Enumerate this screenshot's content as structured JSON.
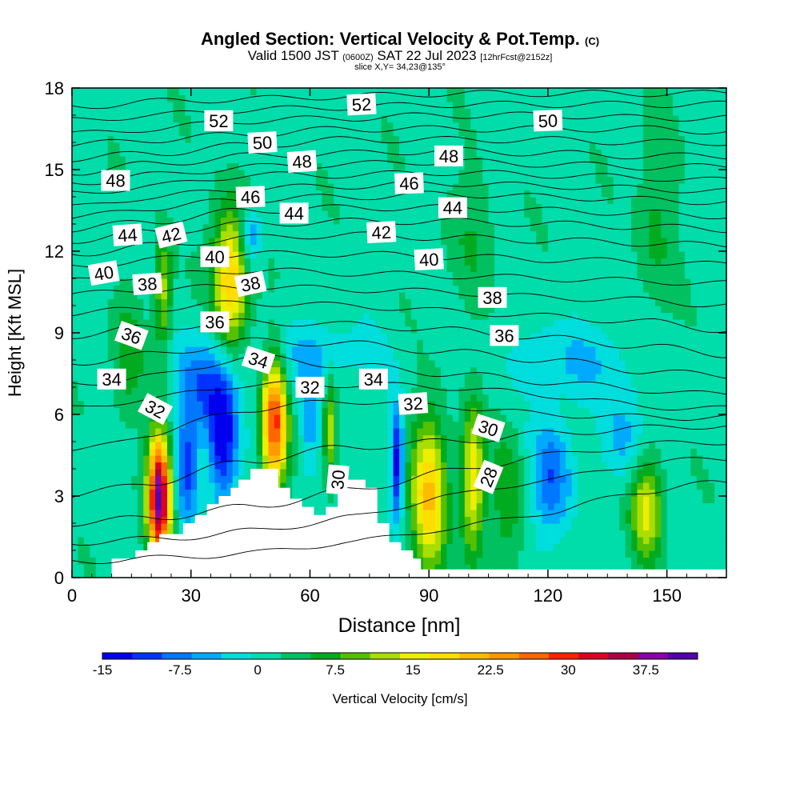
{
  "title": {
    "main": "Angled Section: Vertical Velocity & Pot.Temp.",
    "copyright": "(C)",
    "valid_prefix": "Valid 1500 JST",
    "valid_utc": "(0600Z)",
    "valid_date": "SAT 22 Jul 2023",
    "forecast": "[12hrFcst@2152z]",
    "slice": "slice X,Y= 34,23@135°"
  },
  "chart_data": {
    "type": "heatmap",
    "title": "Angled Section: Vertical Velocity & Pot.Temp.",
    "xlabel": "Distance [nm]",
    "ylabel": "Height [Kft MSL]",
    "xlim": [
      0,
      165
    ],
    "ylim": [
      0,
      18
    ],
    "x_ticks": [
      0,
      30,
      60,
      90,
      120,
      150
    ],
    "y_ticks": [
      0,
      3,
      6,
      9,
      12,
      15,
      18
    ],
    "colorbar": {
      "label": "Vertical Velocity [cm/s]",
      "min": -15,
      "max": 42.5,
      "step": 2.5,
      "tick_labels": [
        "-15",
        "-7.5",
        "0",
        "7.5",
        "15",
        "22.5",
        "30",
        "37.5"
      ],
      "colors": [
        "#0000ee",
        "#0033ff",
        "#0077ff",
        "#00aaff",
        "#00dddd",
        "#00dcaa",
        "#00c060",
        "#00ab20",
        "#55c000",
        "#aadd00",
        "#eeee00",
        "#ffdd00",
        "#ffbb00",
        "#ff9900",
        "#ff6600",
        "#ff2200",
        "#dd0022",
        "#aa0044",
        "#8800aa",
        "#5500aa"
      ]
    },
    "background_value": -1.0,
    "vertical_velocity_features": [
      {
        "x": 22,
        "z": 3.0,
        "sx": 2.0,
        "sz": 1.6,
        "value": 34
      },
      {
        "x": 23,
        "z": 10.5,
        "sx": 1.5,
        "sz": 1.5,
        "value": 10
      },
      {
        "x": 40,
        "z": 11.0,
        "sx": 3.2,
        "sz": 1.8,
        "value": 17
      },
      {
        "x": 14,
        "z": 8.0,
        "sx": 3.0,
        "sz": 1.5,
        "value": 5
      },
      {
        "x": 51,
        "z": 5.7,
        "sx": 2.2,
        "sz": 1.7,
        "value": 24
      },
      {
        "x": 65,
        "z": 5.5,
        "sx": 1.2,
        "sz": 1.2,
        "value": 11
      },
      {
        "x": 90,
        "z": 3.0,
        "sx": 3.2,
        "sz": 2.0,
        "value": 16
      },
      {
        "x": 101,
        "z": 3.5,
        "sx": 2.0,
        "sz": 1.9,
        "value": 14
      },
      {
        "x": 110,
        "z": 3.0,
        "sx": 3.0,
        "sz": 2.0,
        "value": 5
      },
      {
        "x": 145,
        "z": 2.5,
        "sx": 2.8,
        "sz": 1.3,
        "value": 12
      },
      {
        "x": 147,
        "z": 13.0,
        "sx": 3.5,
        "sz": 2.5,
        "value": 4
      },
      {
        "x": 101,
        "z": 12.5,
        "sx": 5.0,
        "sz": 1.8,
        "value": 3
      },
      {
        "x": 33,
        "z": 7.0,
        "sx": 4.5,
        "sz": 1.3,
        "value": -9
      },
      {
        "x": 38,
        "z": 5.0,
        "sx": 2.4,
        "sz": 1.6,
        "value": -14
      },
      {
        "x": 29,
        "z": 4.0,
        "sx": 2.0,
        "sz": 1.4,
        "value": -9
      },
      {
        "x": 45,
        "z": 12.5,
        "sx": 2.0,
        "sz": 0.8,
        "value": -9
      },
      {
        "x": 60,
        "z": 5.8,
        "sx": 1.8,
        "sz": 1.5,
        "value": -5
      },
      {
        "x": 82,
        "z": 4.3,
        "sx": 1.1,
        "sz": 1.4,
        "value": -13
      },
      {
        "x": 121,
        "z": 3.7,
        "sx": 3.5,
        "sz": 1.5,
        "value": -9
      },
      {
        "x": 139,
        "z": 5.2,
        "sx": 3.5,
        "sz": 1.2,
        "value": -5
      },
      {
        "x": 127,
        "z": 8.0,
        "sx": 12.0,
        "sz": 1.0,
        "value": -4
      },
      {
        "x": 60,
        "z": 8.2,
        "sx": 12.0,
        "sz": 0.9,
        "value": -4
      }
    ],
    "terrain": [
      [
        10,
        0.7
      ],
      [
        13,
        0.7
      ],
      [
        16,
        1.0
      ],
      [
        19,
        1.3
      ],
      [
        22,
        1.6
      ],
      [
        25,
        1.6
      ],
      [
        28,
        2.0
      ],
      [
        31,
        2.3
      ],
      [
        34,
        2.7
      ],
      [
        37,
        3.0
      ],
      [
        40,
        3.3
      ],
      [
        42,
        3.6
      ],
      [
        45,
        4.0
      ],
      [
        48,
        4.0
      ],
      [
        52,
        3.3
      ],
      [
        55,
        2.9
      ],
      [
        58,
        2.6
      ],
      [
        61,
        2.3
      ],
      [
        64,
        2.6
      ],
      [
        67,
        3.6
      ],
      [
        71,
        3.6
      ],
      [
        74,
        3.3
      ],
      [
        77,
        2.0
      ],
      [
        80,
        1.3
      ],
      [
        83,
        1.0
      ],
      [
        86,
        0.7
      ],
      [
        88,
        0.3
      ],
      [
        89,
        0.3
      ],
      [
        165,
        0.3
      ]
    ],
    "potential_temperature_contours": [
      {
        "value": 28,
        "z": [
          0.6,
          0.7,
          0.9,
          1.3,
          1.8,
          2.4,
          3.2,
          3.5
        ]
      },
      {
        "value": 29,
        "z": [
          1.3,
          1.4,
          1.7,
          2.2,
          3.0,
          3.6,
          4.2,
          4.4
        ]
      },
      {
        "value": 30,
        "z": [
          2.0,
          2.2,
          2.6,
          3.2,
          3.9,
          4.5,
          4.9,
          5.0
        ]
      },
      {
        "value": 31,
        "z": [
          3.0,
          3.5,
          4.3,
          4.8,
          5.0,
          5.3,
          5.5,
          5.6
        ]
      },
      {
        "value": 32,
        "z": [
          4.6,
          5.3,
          6.2,
          6.5,
          6.3,
          6.0,
          5.9,
          5.9
        ]
      },
      {
        "value": 33,
        "z": [
          6.2,
          6.6,
          7.1,
          7.1,
          7.0,
          6.7,
          6.3,
          6.2
        ]
      },
      {
        "value": 34,
        "z": [
          7.1,
          7.4,
          8.1,
          7.8,
          7.5,
          7.2,
          6.9,
          6.7
        ]
      },
      {
        "value": 35,
        "z": [
          7.9,
          8.2,
          8.7,
          8.6,
          8.3,
          8.0,
          7.6,
          7.4
        ]
      },
      {
        "value": 36,
        "z": [
          8.9,
          9.2,
          9.4,
          9.3,
          9.1,
          8.8,
          8.5,
          8.2
        ]
      },
      {
        "value": 37,
        "z": [
          9.7,
          9.9,
          10.1,
          10.0,
          9.8,
          9.6,
          9.4,
          9.1
        ]
      },
      {
        "value": 38,
        "z": [
          10.4,
          10.6,
          10.7,
          10.6,
          10.5,
          10.3,
          10.2,
          10.0
        ]
      },
      {
        "value": 39,
        "z": [
          10.9,
          11.1,
          11.3,
          11.2,
          11.1,
          11.0,
          10.9,
          10.8
        ]
      },
      {
        "value": 40,
        "z": [
          11.4,
          11.7,
          11.9,
          11.9,
          11.8,
          11.7,
          11.6,
          11.5
        ]
      },
      {
        "value": 41,
        "z": [
          11.9,
          12.2,
          12.5,
          12.6,
          12.5,
          12.4,
          12.3,
          12.2
        ]
      },
      {
        "value": 42,
        "z": [
          12.4,
          12.7,
          13.0,
          13.1,
          13.1,
          13.0,
          12.9,
          12.8
        ]
      },
      {
        "value": 43,
        "z": [
          12.8,
          13.1,
          13.5,
          13.6,
          13.6,
          13.5,
          13.4,
          13.3
        ]
      },
      {
        "value": 44,
        "z": [
          13.2,
          13.6,
          13.9,
          14.0,
          14.1,
          14.0,
          13.9,
          13.8
        ]
      },
      {
        "value": 45,
        "z": [
          13.6,
          14.0,
          14.3,
          14.4,
          14.5,
          14.4,
          14.3,
          14.2
        ]
      },
      {
        "value": 46,
        "z": [
          14.1,
          14.4,
          14.8,
          14.8,
          14.9,
          14.8,
          14.7,
          14.6
        ]
      },
      {
        "value": 47,
        "z": [
          14.5,
          14.8,
          15.1,
          15.2,
          15.3,
          15.2,
          15.1,
          15.1
        ]
      },
      {
        "value": 48,
        "z": [
          14.9,
          15.2,
          15.5,
          15.6,
          15.7,
          15.6,
          15.5,
          15.5
        ]
      },
      {
        "value": 49,
        "z": [
          15.4,
          15.6,
          15.9,
          16.1,
          16.1,
          16.1,
          16.0,
          16.0
        ]
      },
      {
        "value": 50,
        "z": [
          15.9,
          16.1,
          16.3,
          16.5,
          16.5,
          16.5,
          16.5,
          16.4
        ]
      },
      {
        "value": 51,
        "z": [
          16.3,
          16.5,
          16.8,
          16.9,
          17.0,
          17.0,
          16.9,
          16.9
        ]
      },
      {
        "value": 52,
        "z": [
          16.8,
          17.0,
          17.2,
          17.3,
          17.4,
          17.4,
          17.4,
          17.4
        ]
      },
      {
        "value": 53,
        "z": [
          17.3,
          17.5,
          17.6,
          17.7,
          17.8,
          17.8,
          17.8,
          17.8
        ]
      }
    ],
    "contour_x_nodes": [
      0,
      20,
      45,
      70,
      95,
      120,
      145,
      165
    ],
    "contour_labels": [
      {
        "text": "52",
        "x": 37,
        "y": 16.8,
        "rot": 0
      },
      {
        "text": "52",
        "x": 73,
        "y": 17.4,
        "rot": -3
      },
      {
        "text": "50",
        "x": 48,
        "y": 16.0,
        "rot": -3
      },
      {
        "text": "50",
        "x": 120,
        "y": 16.8,
        "rot": -2
      },
      {
        "text": "48",
        "x": 11,
        "y": 14.6,
        "rot": 0
      },
      {
        "text": "48",
        "x": 58,
        "y": 15.3,
        "rot": -4
      },
      {
        "text": "48",
        "x": 95,
        "y": 15.5,
        "rot": 0
      },
      {
        "text": "46",
        "x": 45,
        "y": 14.0,
        "rot": -2
      },
      {
        "text": "46",
        "x": 85,
        "y": 14.5,
        "rot": -2
      },
      {
        "text": "44",
        "x": 14,
        "y": 12.6,
        "rot": -4
      },
      {
        "text": "44",
        "x": 56,
        "y": 13.4,
        "rot": 0
      },
      {
        "text": "44",
        "x": 96,
        "y": 13.6,
        "rot": 0
      },
      {
        "text": "42",
        "x": 25,
        "y": 12.6,
        "rot": -14
      },
      {
        "text": "42",
        "x": 78,
        "y": 12.7,
        "rot": -3
      },
      {
        "text": "40",
        "x": 8,
        "y": 11.2,
        "rot": -10
      },
      {
        "text": "40",
        "x": 36,
        "y": 11.8,
        "rot": 0
      },
      {
        "text": "40",
        "x": 90,
        "y": 11.7,
        "rot": -3
      },
      {
        "text": "38",
        "x": 19,
        "y": 10.8,
        "rot": -4
      },
      {
        "text": "38",
        "x": 45,
        "y": 10.8,
        "rot": -12
      },
      {
        "text": "38",
        "x": 106,
        "y": 10.3,
        "rot": 0
      },
      {
        "text": "36",
        "x": 15,
        "y": 8.9,
        "rot": 20
      },
      {
        "text": "36",
        "x": 36,
        "y": 9.4,
        "rot": 0
      },
      {
        "text": "36",
        "x": 109,
        "y": 8.9,
        "rot": 0
      },
      {
        "text": "34",
        "x": 10,
        "y": 7.3,
        "rot": 0
      },
      {
        "text": "34",
        "x": 47,
        "y": 8.0,
        "rot": 18
      },
      {
        "text": "34",
        "x": 76,
        "y": 7.3,
        "rot": 0
      },
      {
        "text": "32",
        "x": 21,
        "y": 6.2,
        "rot": 28
      },
      {
        "text": "32",
        "x": 60,
        "y": 7.0,
        "rot": 0
      },
      {
        "text": "32",
        "x": 86,
        "y": 6.4,
        "rot": -4
      },
      {
        "text": "30",
        "x": 105,
        "y": 5.5,
        "rot": 18
      },
      {
        "text": "30",
        "x": 67,
        "y": 3.6,
        "rot": -85
      },
      {
        "text": "28",
        "x": 105,
        "y": 3.7,
        "rot": -68
      }
    ]
  }
}
